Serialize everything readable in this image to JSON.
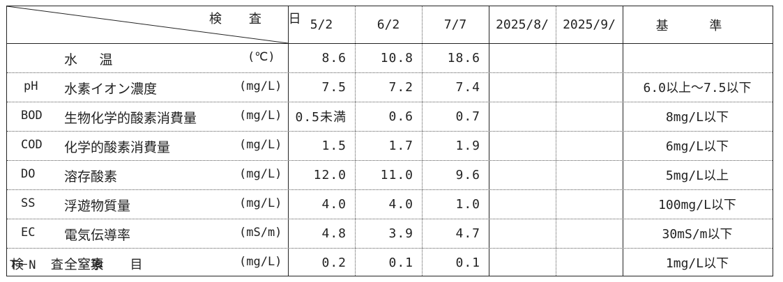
{
  "header": {
    "date_label": "検 査 日",
    "item_label": "検 査 項 目",
    "dates": [
      "5/2",
      "6/2",
      "7/7",
      "2025/8/",
      "2025/9/"
    ],
    "standard_label": "基 準"
  },
  "rows": [
    {
      "abbr": "",
      "name": "水 温",
      "unit": "(℃)",
      "values": [
        "8.6",
        "10.8",
        "18.6",
        "",
        ""
      ],
      "standard": ""
    },
    {
      "abbr": "pH",
      "name": "水素イオン濃度",
      "unit": "(mg/L)",
      "values": [
        "7.5",
        "7.2",
        "7.4",
        "",
        ""
      ],
      "standard": "6.0以上～7.5以下"
    },
    {
      "abbr": "BOD",
      "name": "生物化学的酸素消費量",
      "unit": "(mg/L)",
      "values": [
        "0.5未満",
        "0.6",
        "0.7",
        "",
        ""
      ],
      "standard": "8mg/L以下"
    },
    {
      "abbr": "COD",
      "name": "化学的酸素消費量",
      "unit": "(mg/L)",
      "values": [
        "1.5",
        "1.7",
        "1.9",
        "",
        ""
      ],
      "standard": "6mg/L以下"
    },
    {
      "abbr": "DO",
      "name": "溶存酸素",
      "unit": "(mg/L)",
      "values": [
        "12.0",
        "11.0",
        "9.6",
        "",
        ""
      ],
      "standard": "5mg/L以上"
    },
    {
      "abbr": "SS",
      "name": "浮遊物質量",
      "unit": "(mg/L)",
      "values": [
        "4.0",
        "4.0",
        "1.0",
        "",
        ""
      ],
      "standard": "100mg/L以下"
    },
    {
      "abbr": "EC",
      "name": "電気伝導率",
      "unit": "(mS/m)",
      "values": [
        "4.8",
        "3.9",
        "4.7",
        "",
        ""
      ],
      "standard": "30mS/m以下"
    },
    {
      "abbr": "T－N",
      "name": "全窒素",
      "unit": "(mg/L)",
      "values": [
        "0.2",
        "0.1",
        "0.1",
        "",
        ""
      ],
      "standard": "1mg/L以下"
    }
  ]
}
